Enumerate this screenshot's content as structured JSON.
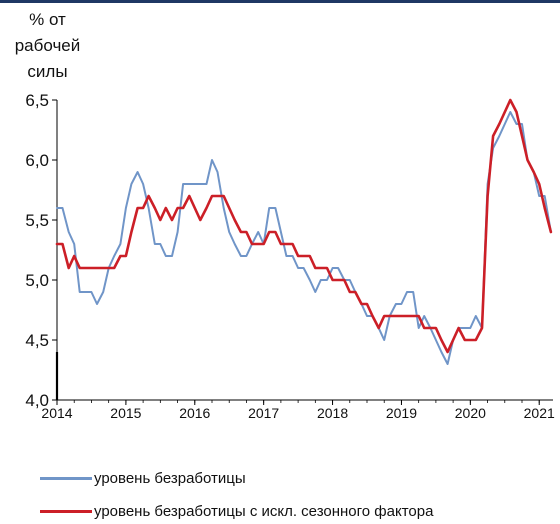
{
  "chart_data": {
    "type": "line",
    "ylabel_lines": [
      "% от",
      "рабочей",
      "силы"
    ],
    "ylim": [
      4.0,
      6.5
    ],
    "yticks": [
      "4,0",
      "4,5",
      "5,0",
      "5,5",
      "6,0",
      "6,5"
    ],
    "xlim": [
      2014.0,
      2021.2
    ],
    "xticks": [
      "2014",
      "2015",
      "2016",
      "2017",
      "2018",
      "2019",
      "2020",
      "2021"
    ],
    "grid": false,
    "legend_position": "bottom",
    "series": [
      {
        "name": "уровень безработицы",
        "color": "#7095c8",
        "x": [
          2014.0,
          2014.08,
          2014.17,
          2014.25,
          2014.33,
          2014.42,
          2014.5,
          2014.58,
          2014.67,
          2014.75,
          2014.83,
          2014.92,
          2015.0,
          2015.08,
          2015.17,
          2015.25,
          2015.33,
          2015.42,
          2015.5,
          2015.58,
          2015.67,
          2015.75,
          2015.83,
          2015.92,
          2016.0,
          2016.08,
          2016.17,
          2016.25,
          2016.33,
          2016.42,
          2016.5,
          2016.58,
          2016.67,
          2016.75,
          2016.83,
          2016.92,
          2017.0,
          2017.08,
          2017.17,
          2017.25,
          2017.33,
          2017.42,
          2017.5,
          2017.58,
          2017.67,
          2017.75,
          2017.83,
          2017.92,
          2018.0,
          2018.08,
          2018.17,
          2018.25,
          2018.33,
          2018.42,
          2018.5,
          2018.58,
          2018.67,
          2018.75,
          2018.83,
          2018.92,
          2019.0,
          2019.08,
          2019.17,
          2019.25,
          2019.33,
          2019.42,
          2019.5,
          2019.58,
          2019.67,
          2019.75,
          2019.83,
          2019.92,
          2020.0,
          2020.08,
          2020.17,
          2020.25,
          2020.33,
          2020.42,
          2020.5,
          2020.58,
          2020.67,
          2020.75,
          2020.83,
          2020.92,
          2021.0,
          2021.08,
          2021.17
        ],
        "y": [
          5.6,
          5.6,
          5.4,
          5.3,
          4.9,
          4.9,
          4.9,
          4.8,
          4.9,
          5.1,
          5.2,
          5.3,
          5.6,
          5.8,
          5.9,
          5.8,
          5.6,
          5.3,
          5.3,
          5.2,
          5.2,
          5.4,
          5.8,
          5.8,
          5.8,
          5.8,
          5.8,
          6.0,
          5.9,
          5.6,
          5.4,
          5.3,
          5.2,
          5.2,
          5.3,
          5.4,
          5.3,
          5.6,
          5.6,
          5.4,
          5.2,
          5.2,
          5.1,
          5.1,
          5.0,
          4.9,
          5.0,
          5.0,
          5.1,
          5.1,
          5.0,
          5.0,
          4.9,
          4.8,
          4.7,
          4.7,
          4.6,
          4.5,
          4.7,
          4.8,
          4.8,
          4.9,
          4.9,
          4.6,
          4.7,
          4.6,
          4.5,
          4.4,
          4.3,
          4.5,
          4.6,
          4.6,
          4.6,
          4.7,
          4.6,
          5.8,
          6.1,
          6.2,
          6.3,
          6.4,
          6.3,
          6.3,
          6.0,
          5.9,
          5.7,
          5.7,
          5.4
        ]
      },
      {
        "name": "уровень безработицы с искл. сезонного фактора",
        "color": "#cc1f27",
        "x": [
          2014.0,
          2014.08,
          2014.17,
          2014.25,
          2014.33,
          2014.42,
          2014.5,
          2014.58,
          2014.67,
          2014.75,
          2014.83,
          2014.92,
          2015.0,
          2015.08,
          2015.17,
          2015.25,
          2015.33,
          2015.42,
          2015.5,
          2015.58,
          2015.67,
          2015.75,
          2015.83,
          2015.92,
          2016.0,
          2016.08,
          2016.17,
          2016.25,
          2016.33,
          2016.42,
          2016.5,
          2016.58,
          2016.67,
          2016.75,
          2016.83,
          2016.92,
          2017.0,
          2017.08,
          2017.17,
          2017.25,
          2017.33,
          2017.42,
          2017.5,
          2017.58,
          2017.67,
          2017.75,
          2017.83,
          2017.92,
          2018.0,
          2018.08,
          2018.17,
          2018.25,
          2018.33,
          2018.42,
          2018.5,
          2018.58,
          2018.67,
          2018.75,
          2018.83,
          2018.92,
          2019.0,
          2019.08,
          2019.17,
          2019.25,
          2019.33,
          2019.42,
          2019.5,
          2019.58,
          2019.67,
          2019.75,
          2019.83,
          2019.92,
          2020.0,
          2020.08,
          2020.17,
          2020.25,
          2020.33,
          2020.42,
          2020.5,
          2020.58,
          2020.67,
          2020.75,
          2020.83,
          2020.92,
          2021.0,
          2021.08,
          2021.17
        ],
        "y": [
          5.3,
          5.3,
          5.1,
          5.2,
          5.1,
          5.1,
          5.1,
          5.1,
          5.1,
          5.1,
          5.1,
          5.2,
          5.2,
          5.4,
          5.6,
          5.6,
          5.7,
          5.6,
          5.5,
          5.6,
          5.5,
          5.6,
          5.6,
          5.7,
          5.6,
          5.5,
          5.6,
          5.7,
          5.7,
          5.7,
          5.6,
          5.5,
          5.4,
          5.4,
          5.3,
          5.3,
          5.3,
          5.4,
          5.4,
          5.3,
          5.3,
          5.3,
          5.2,
          5.2,
          5.2,
          5.1,
          5.1,
          5.1,
          5.0,
          5.0,
          5.0,
          4.9,
          4.9,
          4.8,
          4.8,
          4.7,
          4.6,
          4.7,
          4.7,
          4.7,
          4.7,
          4.7,
          4.7,
          4.7,
          4.6,
          4.6,
          4.6,
          4.5,
          4.4,
          4.5,
          4.6,
          4.5,
          4.5,
          4.5,
          4.6,
          5.7,
          6.2,
          6.3,
          6.4,
          6.5,
          6.4,
          6.2,
          6.0,
          5.9,
          5.8,
          5.6,
          5.4
        ]
      }
    ]
  }
}
